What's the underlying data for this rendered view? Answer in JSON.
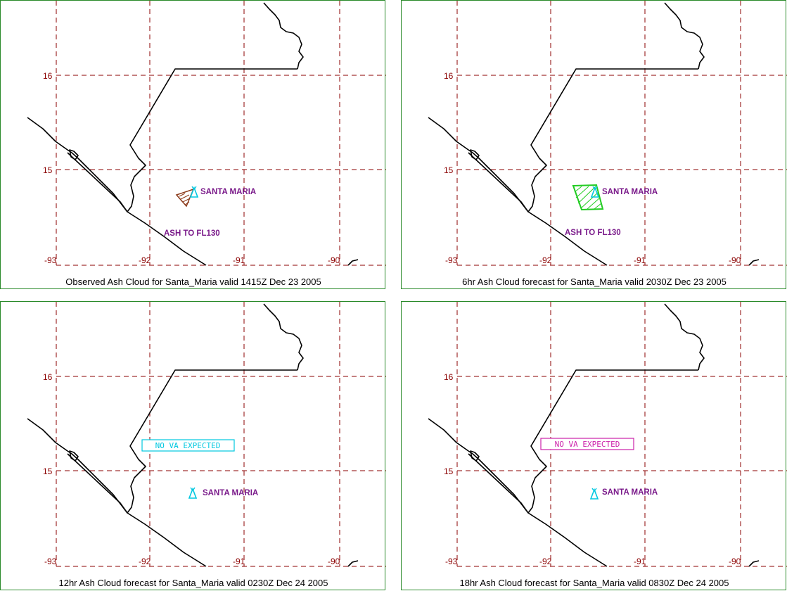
{
  "grid_labels": {
    "lat_16": "16",
    "lat_15": "15",
    "lon_93": "-93",
    "lon_92": "-92",
    "lon_91": "-91",
    "lon_90": "-90"
  },
  "colors": {
    "grid": "#8b0000",
    "coast": "#000000",
    "volcano": "#00c8e0",
    "label": "#7a1a8a",
    "frame": "#2a8a2a",
    "observed_cloud": "#8b3a1a",
    "forecast_cloud": "#22cc22",
    "no_va_cyan": "#00c8e0",
    "no_va_magenta": "#cc22aa"
  },
  "panels": [
    {
      "caption": "Observed Ash Cloud for Santa_Maria valid 1415Z Dec 23 2005",
      "volcano_label": "SANTA MARIA",
      "ash_label": "ASH TO FL130",
      "volcano_icon": "volcano-triangle-icon"
    },
    {
      "caption": "6hr Ash Cloud forecast for Santa_Maria valid 2030Z Dec 23 2005",
      "volcano_label": "SANTA MARIA",
      "ash_label": "ASH TO FL130",
      "volcano_icon": "volcano-triangle-icon"
    },
    {
      "caption": "12hr Ash Cloud forecast for Santa_Maria valid 0230Z Dec 24 2005",
      "volcano_label": "SANTA MARIA",
      "no_va_text": "NO VA EXPECTED",
      "volcano_icon": "volcano-triangle-icon"
    },
    {
      "caption": "18hr Ash Cloud forecast for Santa_Maria valid 0830Z Dec 24 2005",
      "volcano_label": "SANTA MARIA",
      "no_va_text": "NO VA EXPECTED",
      "volcano_icon": "volcano-triangle-icon"
    }
  ]
}
